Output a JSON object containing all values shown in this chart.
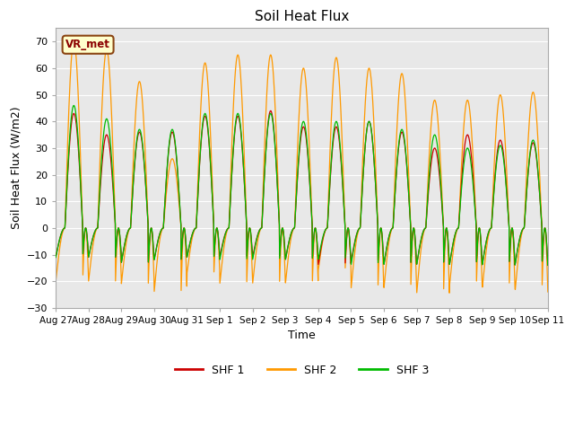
{
  "title": "Soil Heat Flux",
  "ylabel": "Soil Heat Flux (W/m2)",
  "xlabel": "Time",
  "annotation": "VR_met",
  "ylim": [
    -30,
    75
  ],
  "yticks": [
    -30,
    -20,
    -10,
    0,
    10,
    20,
    30,
    40,
    50,
    60,
    70
  ],
  "legend_labels": [
    "SHF 1",
    "SHF 2",
    "SHF 3"
  ],
  "line_colors": [
    "#cc0000",
    "#ff9900",
    "#00bb00"
  ],
  "fig_bg_color": "#ffffff",
  "plot_bg_color": "#e8e8e8",
  "tick_labels": [
    "Aug 27",
    "Aug 28",
    "Aug 29",
    "Aug 30",
    "Aug 31",
    "Sep 1",
    "Sep 2",
    "Sep 3",
    "Sep 4",
    "Sep 5",
    "Sep 6",
    "Sep 7",
    "Sep 8",
    "Sep 9",
    "Sep 10",
    "Sep 11"
  ],
  "shf1_peaks": [
    43,
    35,
    36,
    36,
    42,
    42,
    44,
    38,
    38,
    40,
    36,
    30,
    35,
    33,
    32
  ],
  "shf1_troughs": [
    -11,
    -11,
    -13,
    -12,
    -11,
    -11,
    -11,
    -12,
    -14,
    -13,
    -14,
    -14,
    -14,
    -14,
    -14
  ],
  "shf2_peaks": [
    70,
    67,
    55,
    26,
    62,
    65,
    65,
    60,
    64,
    60,
    58,
    48,
    48,
    50,
    51
  ],
  "shf2_troughs": [
    -20,
    -20,
    -21,
    -24,
    -17,
    -21,
    -21,
    -21,
    -16,
    -23,
    -23,
    -25,
    -22,
    -23,
    -24
  ],
  "shf3_peaks": [
    46,
    41,
    37,
    37,
    43,
    43,
    43,
    40,
    40,
    40,
    37,
    35,
    30,
    31,
    33
  ],
  "shf3_troughs": [
    -11,
    -11,
    -13,
    -12,
    -11,
    -12,
    -12,
    -12,
    -12,
    -14,
    -14,
    -14,
    -14,
    -14,
    -14
  ],
  "day_start": 0.28,
  "day_end": 0.82,
  "n_days": 15,
  "pts_per_day": 144
}
